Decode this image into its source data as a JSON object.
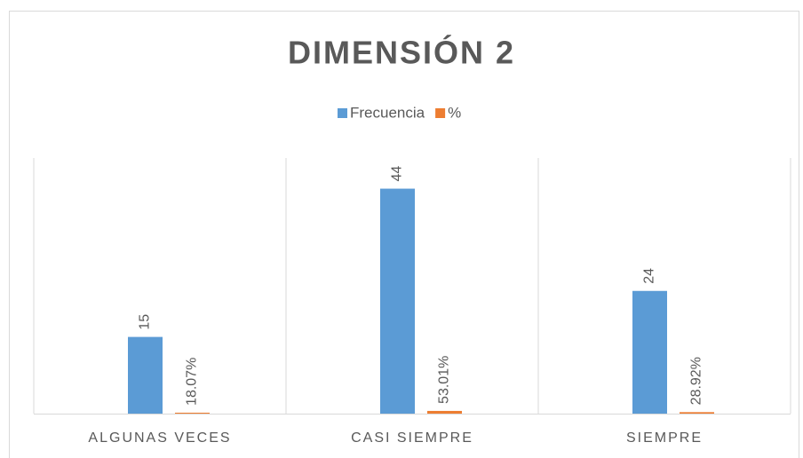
{
  "chart_data": {
    "type": "bar",
    "title": "DIMENSIÓN 2",
    "categories": [
      "ALGUNAS VECES",
      "CASI SIEMPRE",
      "SIEMPRE"
    ],
    "series": [
      {
        "name": "Frecuencia",
        "color": "#5b9bd5",
        "values": [
          15,
          44,
          24
        ]
      },
      {
        "name": "%",
        "color": "#ed7d31",
        "values": [
          0.1807,
          0.5301,
          0.2892
        ],
        "value_labels": [
          "18.07%",
          "53.01%",
          "28.92%"
        ]
      }
    ],
    "ylim": [
      0,
      50
    ],
    "legend": "top"
  }
}
